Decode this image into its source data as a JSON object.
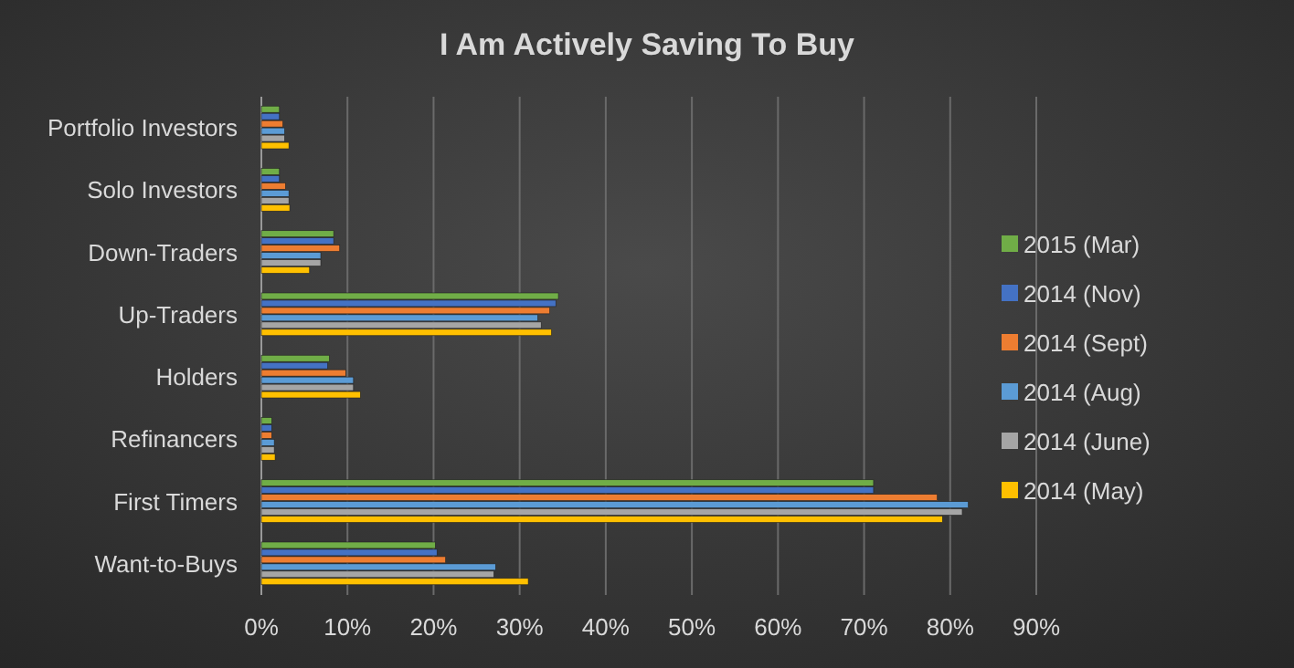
{
  "chart_data": {
    "type": "bar",
    "orientation": "horizontal",
    "title": "I Am Actively Saving To Buy",
    "categories": [
      "Portfolio Investors",
      "Solo Investors",
      "Down-Traders",
      "Up-Traders",
      "Holders",
      "Refinancers",
      "First Timers",
      "Want-to-Buys"
    ],
    "series": [
      {
        "name": "2015 (Mar)",
        "color": "#70ad47",
        "values": [
          2.1,
          2.1,
          8.4,
          34.5,
          7.9,
          1.2,
          71.1,
          20.2
        ]
      },
      {
        "name": "2014 (Nov)",
        "color": "#4472c4",
        "values": [
          2.1,
          2.1,
          8.4,
          34.2,
          7.7,
          1.2,
          71.1,
          20.4
        ]
      },
      {
        "name": "2014 (Sept)",
        "color": "#ed7d31",
        "values": [
          2.5,
          2.8,
          9.1,
          33.5,
          9.8,
          1.2,
          78.5,
          21.4
        ]
      },
      {
        "name": "2014 (Aug)",
        "color": "#5b9bd5",
        "values": [
          2.7,
          3.2,
          6.9,
          32.1,
          10.7,
          1.5,
          82.1,
          27.2
        ]
      },
      {
        "name": "2014 (June)",
        "color": "#a5a5a5",
        "values": [
          2.7,
          3.2,
          6.9,
          32.5,
          10.7,
          1.5,
          81.4,
          27.0
        ]
      },
      {
        "name": "2014 (May)",
        "color": "#ffc000",
        "values": [
          3.2,
          3.3,
          5.6,
          33.7,
          11.5,
          1.6,
          79.1,
          31.0
        ]
      }
    ],
    "xlim": [
      0,
      90
    ],
    "xticks": [
      {
        "value": 0,
        "label": "0%"
      },
      {
        "value": 10,
        "label": "10%"
      },
      {
        "value": 20,
        "label": "20%"
      },
      {
        "value": 30,
        "label": "30%"
      },
      {
        "value": 40,
        "label": "40%"
      },
      {
        "value": 50,
        "label": "50%"
      },
      {
        "value": 60,
        "label": "60%"
      },
      {
        "value": 70,
        "label": "70%"
      },
      {
        "value": 80,
        "label": "80%"
      },
      {
        "value": 90,
        "label": "90%"
      }
    ],
    "grid": "x",
    "legend": "right"
  }
}
